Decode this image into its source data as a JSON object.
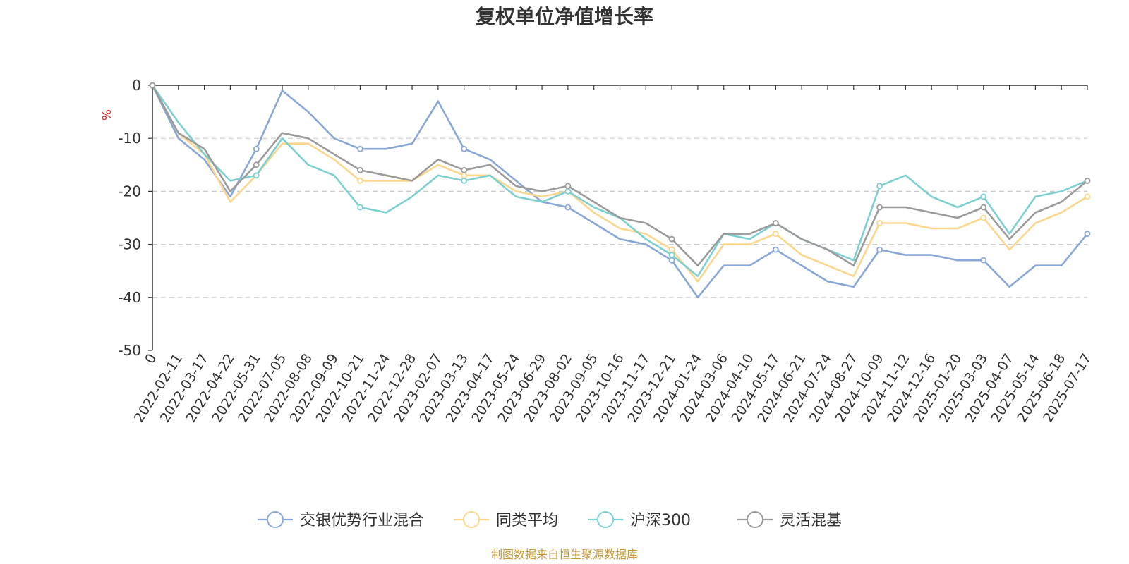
{
  "chart_data": {
    "type": "line",
    "title": "复权单位净值增长率",
    "ylabel": "%",
    "ylim": [
      -50,
      0
    ],
    "yticks": [
      0,
      -10,
      -20,
      -30,
      -40,
      -50
    ],
    "grid": "horizontal dashed",
    "legend_position": "bottom-center",
    "source": "制图数据来自恒生聚源数据库",
    "x": [
      "0",
      "2022-02-11",
      "2022-03-17",
      "2022-04-22",
      "2022-05-31",
      "2022-07-05",
      "2022-08-08",
      "2022-09-09",
      "2022-10-21",
      "2022-11-24",
      "2022-12-28",
      "2023-02-07",
      "2023-03-13",
      "2023-04-17",
      "2023-05-24",
      "2023-06-29",
      "2023-08-02",
      "2023-09-05",
      "2023-10-16",
      "2023-11-17",
      "2023-12-21",
      "2024-01-24",
      "2024-03-06",
      "2024-04-10",
      "2024-05-17",
      "2024-06-21",
      "2024-07-24",
      "2024-08-27",
      "2024-10-09",
      "2024-11-12",
      "2024-12-16",
      "2025-01-20",
      "2025-03-03",
      "2025-04-07",
      "2025-05-14",
      "2025-06-18",
      "2025-07-17"
    ],
    "series": [
      {
        "name": "交银优势行业混合",
        "color": "#8aa8d6",
        "values": [
          0,
          -10,
          -14,
          -21,
          -12,
          -1,
          -5,
          -10,
          -12,
          -12,
          -11,
          -3,
          -12,
          -14,
          -18,
          -22,
          -23,
          -26,
          -29,
          -30,
          -33,
          -40,
          -34,
          -34,
          -31,
          -34,
          -37,
          -38,
          -31,
          -32,
          -32,
          -33,
          -33,
          -38,
          -34,
          -34,
          -28
        ]
      },
      {
        "name": "同类平均",
        "color": "#fdd68e",
        "values": [
          0,
          -9,
          -13,
          -22,
          -17,
          -11,
          -11,
          -14,
          -18,
          -18,
          -18,
          -15,
          -17,
          -17,
          -20,
          -21,
          -20,
          -24,
          -27,
          -28,
          -31,
          -37,
          -30,
          -30,
          -28,
          -32,
          -34,
          -36,
          -26,
          -26,
          -27,
          -27,
          -25,
          -31,
          -26,
          -24,
          -21
        ]
      },
      {
        "name": "沪深300",
        "color": "#7ed0d0",
        "values": [
          0,
          -7,
          -13,
          -18,
          -17,
          -10,
          -15,
          -17,
          -23,
          -24,
          -21,
          -17,
          -18,
          -17,
          -21,
          -22,
          -20,
          -23,
          -25,
          -29,
          -32,
          -36,
          -28,
          -29,
          -26,
          -29,
          -31,
          -33,
          -19,
          -17,
          -21,
          -23,
          -21,
          -28,
          -21,
          -20,
          -18
        ]
      },
      {
        "name": "灵活混基",
        "color": "#9b9b9b",
        "values": [
          0,
          -9,
          -12,
          -20,
          -15,
          -9,
          -10,
          -13,
          -16,
          -17,
          -18,
          -14,
          -16,
          -15,
          -19,
          -20,
          -19,
          -22,
          -25,
          -26,
          -29,
          -34,
          -28,
          -28,
          -26,
          -29,
          -31,
          -34,
          -23,
          -23,
          -24,
          -25,
          -23,
          -29,
          -24,
          -22,
          -18
        ]
      }
    ]
  }
}
